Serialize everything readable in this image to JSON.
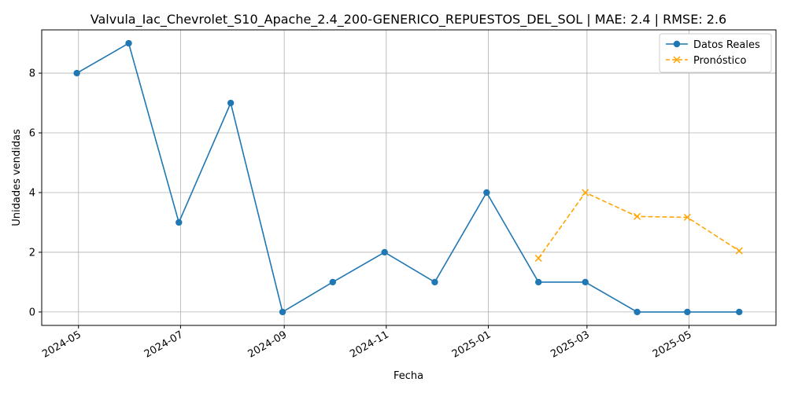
{
  "chart_data": {
    "type": "line",
    "title": "Valvula_Iac_Chevrolet_S10_Apache_2.4_200-GENERICO_REPUESTOS_DEL_SOL | MAE: 2.4 | RMSE: 2.6",
    "xlabel": "Fecha",
    "ylabel": "Unidades vendidas",
    "x_ticks": [
      "2024-05",
      "2024-07",
      "2024-09",
      "2024-11",
      "2025-01",
      "2025-03",
      "2025-05"
    ],
    "y_ticks": [
      0,
      2,
      4,
      6,
      8
    ],
    "xlim": [
      "2024-04-09",
      "2025-06-22"
    ],
    "ylim": [
      -0.45,
      9.45
    ],
    "grid": true,
    "legend_position": "top-right",
    "series": [
      {
        "name": "Datos Reales",
        "color": "#1f77b4",
        "style": "solid",
        "marker": "circle",
        "x": [
          "2024-04-30",
          "2024-05-31",
          "2024-06-30",
          "2024-07-31",
          "2024-08-31",
          "2024-09-30",
          "2024-10-31",
          "2024-11-30",
          "2024-12-31",
          "2025-01-31",
          "2025-02-28",
          "2025-03-31",
          "2025-04-30",
          "2025-05-31"
        ],
        "values": [
          8,
          9,
          3,
          7,
          0,
          1,
          2,
          1,
          4,
          1,
          1,
          0,
          0,
          0
        ]
      },
      {
        "name": "Pronóstico",
        "color": "#ffa500",
        "style": "dashed",
        "marker": "x",
        "x": [
          "2025-01-31",
          "2025-02-28",
          "2025-03-31",
          "2025-04-30",
          "2025-05-31"
        ],
        "values": [
          1.8,
          4.0,
          3.2,
          3.17,
          2.05
        ]
      }
    ]
  }
}
